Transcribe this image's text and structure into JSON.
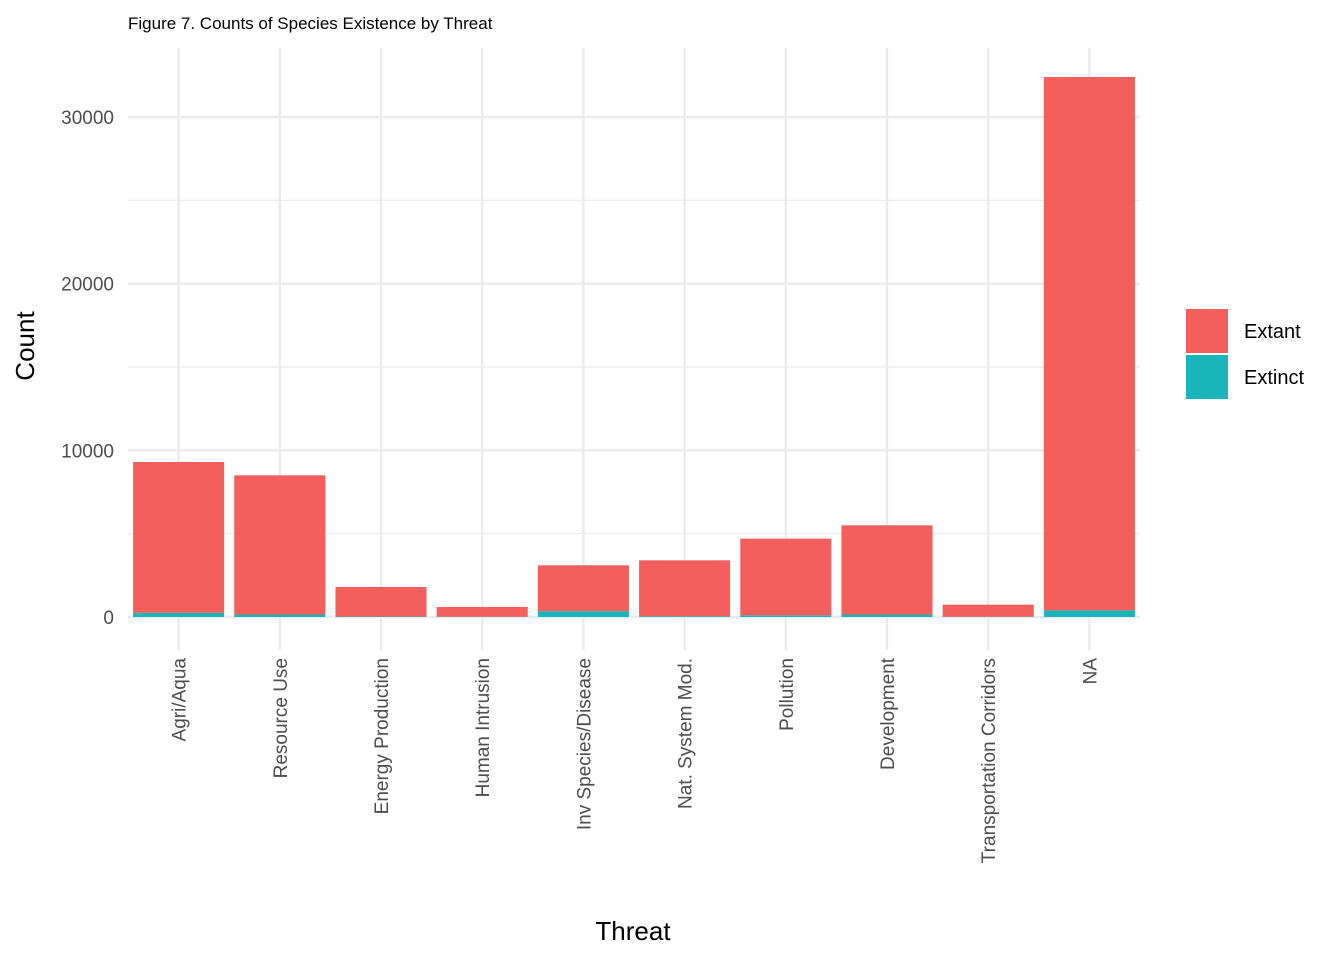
{
  "chart_data": {
    "type": "bar",
    "stacked": true,
    "title": "Figure 7. Counts of Species Existence by Threat",
    "xlabel": "Threat",
    "ylabel": "Count",
    "categories": [
      "Agri/Aqua",
      "Resource Use",
      "Energy Production",
      "Human Intrusion",
      "Inv Species/Disease",
      "Nat. System Mod.",
      "Pollution",
      "Development",
      "Transportation Corridors",
      "NA"
    ],
    "series": [
      {
        "name": "Extinct",
        "color": "#1ab5ba",
        "values": [
          250,
          150,
          30,
          20,
          350,
          50,
          100,
          150,
          20,
          400
        ]
      },
      {
        "name": "Extant",
        "color": "#f25f5c",
        "values": [
          9050,
          8350,
          1770,
          580,
          2750,
          3350,
          4600,
          5350,
          720,
          32000
        ]
      }
    ],
    "yticks": [
      0,
      10000,
      20000,
      30000
    ],
    "ytick_labels": [
      "0",
      "10000",
      "20000",
      "30000"
    ],
    "ylim": [
      -1600,
      34000
    ],
    "grid": true,
    "legend_position": "right",
    "legend": [
      "Extant",
      "Extinct"
    ]
  }
}
